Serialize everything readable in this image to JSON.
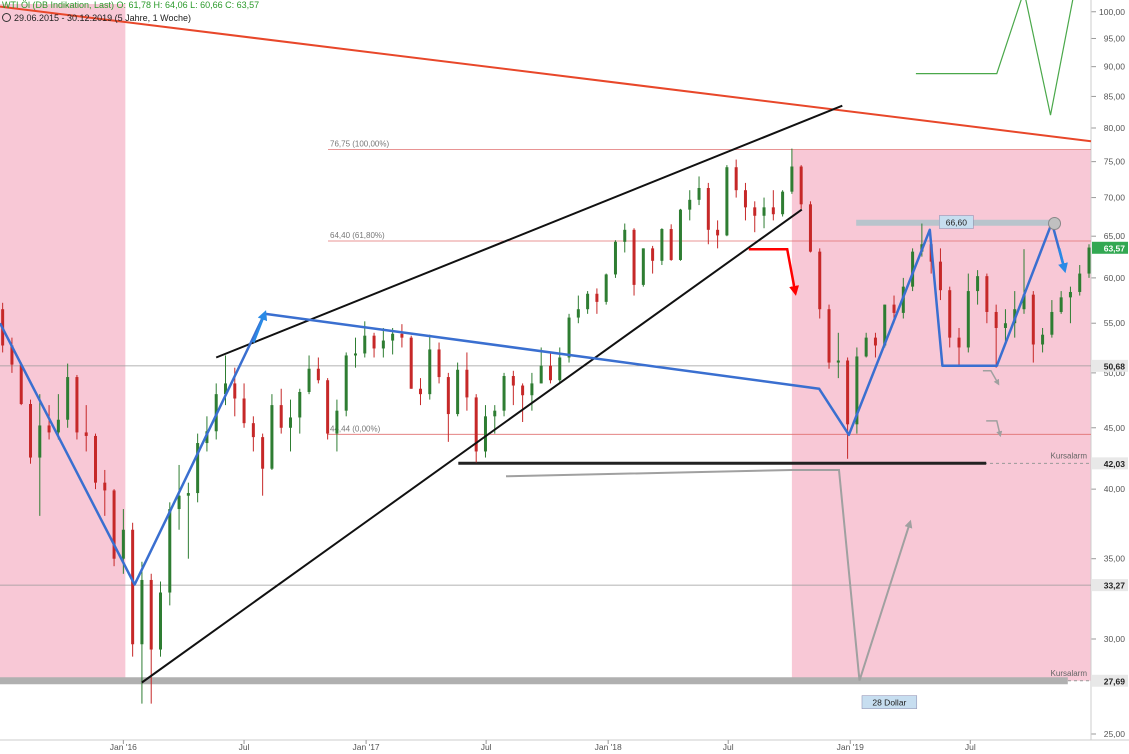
{
  "header": {
    "title": "WTI Öl (DB Indikation, Last)  O: 61,78  H: 64,06  L: 60,66  C: 63,57",
    "date_range": "29.06.2015 - 30.12.2019  (5 Jahre, 1 Woche)"
  },
  "colors": {
    "shade": "#f8c8d6",
    "resistance_line": "#e8472a",
    "channel_lines": "#111111",
    "blue_path": "#3a6fd0",
    "blue_arrow": "#2a8ae6",
    "red_arrow": "#ff0000",
    "grey_path": "#a0a0a0",
    "green_path": "#4aa84a",
    "fib_lines": "#e07070",
    "bull_candle": "#2e7d32",
    "bear_candle": "#c62828",
    "last_price_tag": "#32a852",
    "price_tag": "#e8e8e8"
  },
  "chart_data": {
    "type": "candlestick",
    "title": "WTI Öl (DB Indikation, Last)",
    "subtitle": "29.06.2015 - 30.12.2019 (5 Jahre, 1 Woche)",
    "ohlc_last": {
      "open": 61.78,
      "high": 64.06,
      "low": 60.66,
      "close": 63.57
    },
    "y_scale": "log",
    "ylim": [
      25,
      101.5
    ],
    "y_ticks": [
      25,
      30,
      35,
      40,
      45,
      50,
      55,
      60,
      65,
      70,
      75,
      80,
      85,
      90,
      95,
      100
    ],
    "y_tick_labels": [
      "25,00",
      "30,00",
      "35,00",
      "40,00",
      "45,00",
      "50,00",
      "55,00",
      "60,00",
      "65,00",
      "70,00",
      "75,00",
      "80,00",
      "85,00",
      "90,00",
      "95,00",
      "100,00"
    ],
    "x_range": [
      "2015-06-29",
      "2019-12-30"
    ],
    "x_ticks": [
      {
        "date": "2016-01-01",
        "label": "Jan '16"
      },
      {
        "date": "2016-07-01",
        "label": "Jul"
      },
      {
        "date": "2017-01-01",
        "label": "Jan '17"
      },
      {
        "date": "2017-07-01",
        "label": "Jul"
      },
      {
        "date": "2018-01-01",
        "label": "Jan '18"
      },
      {
        "date": "2018-07-01",
        "label": "Jul"
      },
      {
        "date": "2019-01-01",
        "label": "Jan '19"
      },
      {
        "date": "2019-07-01",
        "label": "Jul"
      }
    ],
    "candles": [
      [
        "2015-07-03",
        56.5,
        57.2,
        52.0,
        52.7
      ],
      [
        "2015-07-17",
        52.7,
        53.5,
        50.0,
        50.8
      ],
      [
        "2015-07-31",
        50.8,
        51.0,
        47.0,
        47.1
      ],
      [
        "2015-08-14",
        47.1,
        47.5,
        42.0,
        42.5
      ],
      [
        "2015-08-28",
        42.5,
        48.0,
        38.0,
        45.2
      ],
      [
        "2015-09-11",
        45.2,
        47.0,
        44.0,
        44.6
      ],
      [
        "2015-09-25",
        44.6,
        48.0,
        44.0,
        45.7
      ],
      [
        "2015-10-09",
        45.7,
        50.9,
        45.0,
        49.6
      ],
      [
        "2015-10-23",
        49.6,
        49.8,
        44.0,
        44.6
      ],
      [
        "2015-11-06",
        44.6,
        47.0,
        43.0,
        44.3
      ],
      [
        "2015-11-20",
        44.3,
        44.5,
        40.0,
        40.5
      ],
      [
        "2015-12-04",
        40.5,
        41.5,
        38.0,
        39.9
      ],
      [
        "2015-12-18",
        39.9,
        40.0,
        34.5,
        35.0
      ],
      [
        "2016-01-01",
        35.0,
        38.5,
        34.0,
        37.0
      ],
      [
        "2016-01-15",
        37.0,
        37.5,
        29.0,
        29.7
      ],
      [
        "2016-01-29",
        29.7,
        34.8,
        26.5,
        33.6
      ],
      [
        "2016-02-12",
        33.6,
        34.0,
        26.5,
        29.4
      ],
      [
        "2016-02-26",
        29.4,
        33.5,
        29.0,
        32.8
      ],
      [
        "2016-03-11",
        32.8,
        39.0,
        32.0,
        38.5
      ],
      [
        "2016-03-25",
        38.5,
        41.9,
        37.0,
        39.5
      ],
      [
        "2016-04-08",
        39.5,
        40.5,
        35.0,
        39.7
      ],
      [
        "2016-04-22",
        39.7,
        44.5,
        39.0,
        43.7
      ],
      [
        "2016-05-06",
        43.7,
        46.0,
        43.0,
        44.7
      ],
      [
        "2016-05-20",
        44.7,
        49.0,
        44.0,
        48.0
      ],
      [
        "2016-06-03",
        48.0,
        51.7,
        47.0,
        49.0
      ],
      [
        "2016-06-17",
        49.0,
        50.5,
        46.0,
        47.6
      ],
      [
        "2016-07-01",
        47.6,
        49.0,
        45.0,
        45.4
      ],
      [
        "2016-07-15",
        45.4,
        46.0,
        43.0,
        44.2
      ],
      [
        "2016-07-29",
        44.2,
        44.5,
        39.5,
        41.6
      ],
      [
        "2016-08-12",
        41.6,
        48.0,
        41.5,
        47.0
      ],
      [
        "2016-08-26",
        47.0,
        48.5,
        44.5,
        45.0
      ],
      [
        "2016-09-09",
        45.0,
        47.5,
        43.0,
        45.9
      ],
      [
        "2016-09-23",
        45.9,
        48.5,
        44.5,
        48.2
      ],
      [
        "2016-10-07",
        48.2,
        51.7,
        48.0,
        50.4
      ],
      [
        "2016-10-21",
        50.4,
        51.5,
        49.0,
        49.3
      ],
      [
        "2016-11-04",
        49.3,
        49.5,
        44.0,
        44.5
      ],
      [
        "2016-11-18",
        44.5,
        47.5,
        43.0,
        46.5
      ],
      [
        "2016-12-02",
        46.5,
        52.0,
        46.0,
        51.7
      ],
      [
        "2016-12-16",
        51.7,
        53.5,
        50.5,
        51.9
      ],
      [
        "2016-12-30",
        51.9,
        55.2,
        51.5,
        53.7
      ],
      [
        "2017-01-13",
        53.7,
        54.0,
        51.5,
        52.4
      ],
      [
        "2017-01-27",
        52.4,
        54.5,
        51.5,
        53.2
      ],
      [
        "2017-02-10",
        53.2,
        54.5,
        51.8,
        53.9
      ],
      [
        "2017-02-24",
        53.9,
        54.9,
        52.5,
        53.5
      ],
      [
        "2017-03-10",
        53.5,
        53.7,
        48.5,
        48.5
      ],
      [
        "2017-03-24",
        48.5,
        49.5,
        47.0,
        48.0
      ],
      [
        "2017-04-07",
        48.0,
        53.8,
        47.5,
        52.3
      ],
      [
        "2017-04-21",
        52.3,
        53.0,
        49.0,
        49.6
      ],
      [
        "2017-05-05",
        49.6,
        50.0,
        43.8,
        46.2
      ],
      [
        "2017-05-19",
        46.2,
        51.0,
        46.0,
        50.3
      ],
      [
        "2017-06-02",
        50.3,
        52.0,
        46.5,
        47.7
      ],
      [
        "2017-06-16",
        47.7,
        48.0,
        42.1,
        43.0
      ],
      [
        "2017-06-30",
        43.0,
        47.0,
        42.5,
        46.0
      ],
      [
        "2017-07-14",
        46.0,
        47.0,
        44.5,
        46.5
      ],
      [
        "2017-07-28",
        46.5,
        50.0,
        46.0,
        49.7
      ],
      [
        "2017-08-11",
        49.7,
        50.2,
        47.0,
        48.8
      ],
      [
        "2017-08-25",
        48.8,
        49.0,
        45.5,
        47.9
      ],
      [
        "2017-09-08",
        47.9,
        50.0,
        46.5,
        49.0
      ],
      [
        "2017-09-22",
        49.0,
        52.5,
        49.0,
        50.7
      ],
      [
        "2017-10-06",
        50.7,
        52.0,
        49.0,
        49.3
      ],
      [
        "2017-10-20",
        49.3,
        52.5,
        49.0,
        51.5
      ],
      [
        "2017-11-03",
        51.5,
        56.0,
        51.0,
        55.6
      ],
      [
        "2017-11-17",
        55.6,
        58.0,
        55.0,
        56.5
      ],
      [
        "2017-12-01",
        56.5,
        58.5,
        56.0,
        58.2
      ],
      [
        "2017-12-15",
        58.2,
        58.8,
        56.0,
        57.3
      ],
      [
        "2017-12-29",
        57.3,
        60.5,
        57.0,
        60.4
      ],
      [
        "2018-01-12",
        60.4,
        64.5,
        60.0,
        64.3
      ],
      [
        "2018-01-26",
        64.3,
        66.6,
        63.0,
        65.8
      ],
      [
        "2018-02-09",
        65.8,
        66.0,
        58.0,
        59.2
      ],
      [
        "2018-02-23",
        59.2,
        63.5,
        59.0,
        63.5
      ],
      [
        "2018-03-09",
        63.5,
        63.8,
        60.5,
        62.0
      ],
      [
        "2018-03-23",
        62.0,
        66.0,
        61.5,
        65.9
      ],
      [
        "2018-04-06",
        65.9,
        66.5,
        62.0,
        62.1
      ],
      [
        "2018-04-20",
        62.1,
        68.5,
        62.0,
        68.4
      ],
      [
        "2018-05-04",
        68.4,
        71.0,
        67.0,
        69.7
      ],
      [
        "2018-05-18",
        69.7,
        72.9,
        69.0,
        71.3
      ],
      [
        "2018-06-01",
        71.3,
        72.0,
        64.0,
        65.8
      ],
      [
        "2018-06-15",
        65.8,
        67.0,
        63.5,
        65.1
      ],
      [
        "2018-06-29",
        65.1,
        74.5,
        65.0,
        74.2
      ],
      [
        "2018-07-13",
        74.2,
        75.3,
        70.0,
        71.0
      ],
      [
        "2018-07-27",
        71.0,
        72.0,
        67.0,
        68.7
      ],
      [
        "2018-08-10",
        68.7,
        69.5,
        65.5,
        67.6
      ],
      [
        "2018-08-24",
        67.6,
        70.0,
        66.0,
        68.7
      ],
      [
        "2018-09-07",
        68.7,
        71.0,
        67.0,
        67.8
      ],
      [
        "2018-09-21",
        67.8,
        71.0,
        67.5,
        70.8
      ],
      [
        "2018-10-05",
        70.8,
        76.9,
        70.5,
        74.3
      ],
      [
        "2018-10-19",
        74.3,
        74.5,
        68.5,
        69.1
      ],
      [
        "2018-11-02",
        69.1,
        69.5,
        63.0,
        63.1
      ],
      [
        "2018-11-16",
        63.1,
        63.5,
        55.5,
        56.5
      ],
      [
        "2018-11-30",
        56.5,
        57.0,
        50.4,
        51.0
      ],
      [
        "2018-12-14",
        51.0,
        54.0,
        49.5,
        51.2
      ],
      [
        "2018-12-28",
        51.2,
        51.5,
        42.4,
        45.3
      ],
      [
        "2019-01-11",
        45.3,
        52.5,
        44.5,
        51.6
      ],
      [
        "2019-01-25",
        51.6,
        54.0,
        51.5,
        53.5
      ],
      [
        "2019-02-08",
        53.5,
        54.0,
        51.5,
        52.7
      ],
      [
        "2019-02-22",
        52.7,
        57.0,
        52.5,
        57.0
      ],
      [
        "2019-03-08",
        57.0,
        58.0,
        55.0,
        56.1
      ],
      [
        "2019-03-22",
        56.1,
        60.0,
        55.5,
        59.0
      ],
      [
        "2019-04-05",
        59.0,
        63.5,
        58.5,
        63.1
      ],
      [
        "2019-04-19",
        63.1,
        66.6,
        62.5,
        64.0
      ],
      [
        "2019-05-03",
        64.0,
        64.5,
        60.5,
        61.9
      ],
      [
        "2019-05-17",
        61.9,
        63.5,
        57.5,
        58.6
      ],
      [
        "2019-05-31",
        58.6,
        59.0,
        52.5,
        53.5
      ],
      [
        "2019-06-14",
        53.5,
        54.5,
        50.6,
        52.5
      ],
      [
        "2019-06-28",
        52.5,
        60.5,
        52.0,
        58.5
      ],
      [
        "2019-07-12",
        58.5,
        60.9,
        57.0,
        60.2
      ],
      [
        "2019-07-26",
        60.2,
        60.5,
        55.0,
        56.2
      ],
      [
        "2019-08-09",
        56.2,
        57.0,
        50.5,
        54.5
      ],
      [
        "2019-08-23",
        54.5,
        56.5,
        53.0,
        55.0
      ],
      [
        "2019-09-06",
        55.0,
        58.5,
        53.5,
        56.5
      ],
      [
        "2019-09-20",
        56.5,
        63.4,
        56.0,
        58.1
      ],
      [
        "2019-10-04",
        58.1,
        58.5,
        51.0,
        52.8
      ],
      [
        "2019-10-18",
        52.8,
        54.5,
        52.0,
        53.8
      ],
      [
        "2019-11-01",
        53.8,
        57.5,
        53.5,
        56.2
      ],
      [
        "2019-11-15",
        56.2,
        58.5,
        56.0,
        57.8
      ],
      [
        "2019-11-29",
        57.8,
        59.0,
        55.0,
        58.4
      ],
      [
        "2019-12-13",
        58.4,
        61.5,
        58.0,
        60.5
      ],
      [
        "2019-12-27",
        60.5,
        64.0,
        60.0,
        63.6
      ]
    ],
    "horizontal_levels": [
      {
        "value": 50.68,
        "label": "50,68"
      },
      {
        "value": 33.27,
        "label": "33,27"
      }
    ],
    "alert_levels": [
      {
        "value": 42.03,
        "label": "42,03",
        "text": "Kursalarm"
      },
      {
        "value": 27.69,
        "label": "27,69",
        "text": "Kursalarm"
      }
    ],
    "last_price": {
      "value": 63.57,
      "label": "63,57"
    },
    "fibonacci": [
      {
        "value": 76.75,
        "label": "76,75 (100,00%)"
      },
      {
        "value": 64.4,
        "label": "64,40 (61,80%)"
      },
      {
        "value": 44.44,
        "label": "44,44 (0,00%)"
      }
    ],
    "shaded_regions": [
      {
        "from": "2015-06-29",
        "to": "2016-01-04",
        "ylim": [
          27.69,
          101.5
        ]
      },
      {
        "from": "2018-10-05",
        "to": "2019-12-30",
        "ylim": [
          27.69,
          76.75
        ]
      }
    ],
    "annotations": [
      {
        "text": "66,60",
        "value": 66.6,
        "date": "2019-06-10"
      },
      {
        "text": "28 Dollar",
        "value": 26.5,
        "date": "2019-03-01"
      }
    ],
    "drawings": {
      "resistance_line": [
        [
          "2015-06-29",
          101.0
        ],
        [
          "2019-12-30",
          78.0
        ]
      ],
      "channel_upper": [
        [
          "2016-05-20",
          51.5
        ],
        [
          "2018-12-20",
          83.5
        ]
      ],
      "channel_lower": [
        [
          "2016-01-29",
          27.6
        ],
        [
          "2018-10-20",
          68.4
        ]
      ],
      "support_bar_42": [
        [
          "2017-05-20",
          42.03
        ],
        [
          "2019-07-25",
          42.03
        ]
      ],
      "support_bar_27": [
        [
          "2015-06-29",
          27.69
        ],
        [
          "2019-11-25",
          27.69
        ]
      ],
      "resistance_bar_66": [
        [
          "2019-01-10",
          66.7
        ],
        [
          "2019-11-10",
          66.7
        ]
      ],
      "blue_path": [
        [
          "2015-06-29",
          55.0
        ],
        [
          "2016-01-18",
          33.3
        ],
        [
          "2016-03-08",
          38.0
        ],
        [
          "2016-08-01",
          56.0
        ],
        [
          "2018-11-15",
          48.5
        ],
        [
          "2018-12-30",
          44.4
        ],
        [
          "2019-05-01",
          65.8
        ],
        [
          "2019-05-20",
          50.68
        ],
        [
          "2019-08-10",
          50.68
        ],
        [
          "2019-11-01",
          66.7
        ],
        [
          "2019-11-20",
          61.0
        ]
      ],
      "red_arrow": [
        [
          "2018-08-01",
          63.4
        ],
        [
          "2018-09-28",
          63.4
        ],
        [
          "2018-10-10",
          58.4
        ]
      ],
      "grey_path": [
        [
          "2017-07-31",
          41.0
        ],
        [
          "2018-10-05",
          41.5
        ],
        [
          "2018-12-15",
          41.5
        ],
        [
          "2019-01-15",
          27.7
        ],
        [
          "2019-04-01",
          37.5
        ]
      ],
      "grey_small_1": [
        [
          "2019-07-20",
          50.2
        ],
        [
          "2019-08-01",
          50.2
        ],
        [
          "2019-08-12",
          49.0
        ]
      ],
      "grey_small_2": [
        [
          "2019-07-25",
          45.6
        ],
        [
          "2019-08-10",
          45.6
        ],
        [
          "2019-08-15",
          44.4
        ]
      ],
      "green_path": [
        [
          "2019-04-10",
          88.8
        ],
        [
          "2019-08-10",
          88.8
        ],
        [
          "2019-09-20",
          104
        ],
        [
          "2019-10-30",
          82
        ],
        [
          "2019-12-05",
          104
        ]
      ],
      "circle_marker": [
        "2019-11-05",
        66.6
      ]
    }
  }
}
